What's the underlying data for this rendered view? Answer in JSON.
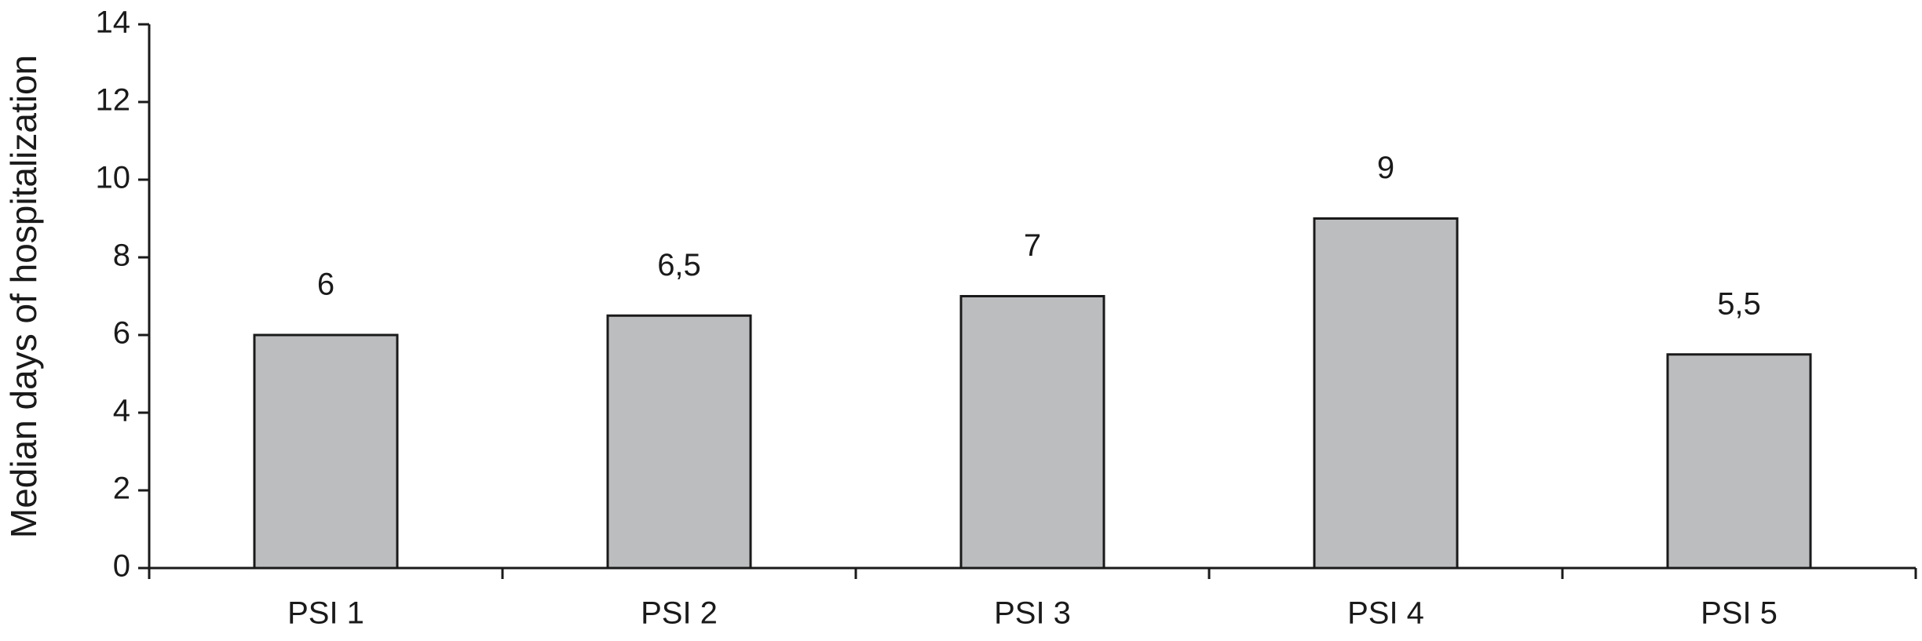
{
  "chart_data": {
    "type": "bar",
    "y_label": "Median days of hospitalization",
    "categories": [
      "PSI 1",
      "PSI 2",
      "PSI 3",
      "PSI 4",
      "PSI 5"
    ],
    "values": [
      6,
      6.5,
      7,
      9,
      5.5
    ],
    "value_labels": [
      "6",
      "6,5",
      "7",
      "9",
      "5,5"
    ],
    "color": "#bcbdbf",
    "ylim": [
      0,
      14
    ],
    "yticks": [
      0,
      2,
      4,
      6,
      8,
      10,
      12,
      14
    ],
    "grid": false
  }
}
